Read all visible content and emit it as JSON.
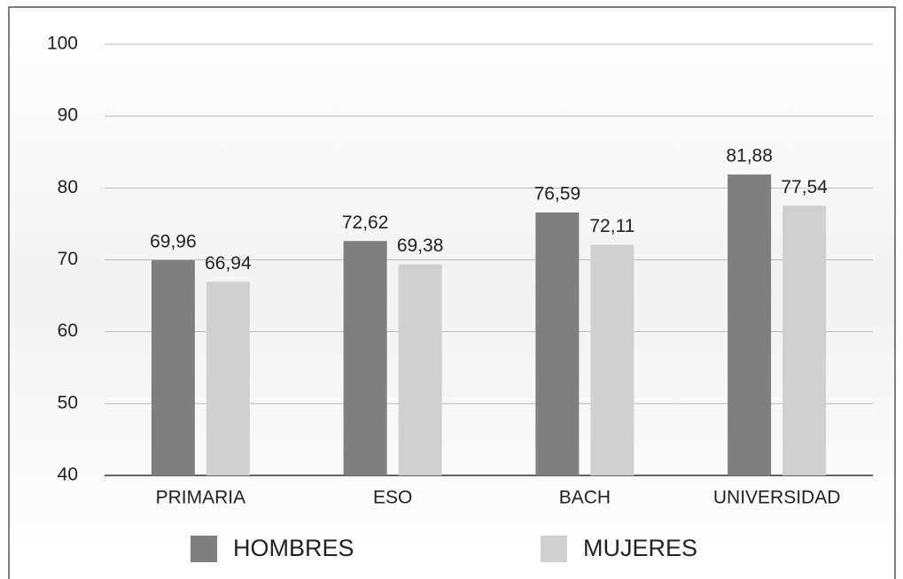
{
  "chart_data": {
    "type": "bar",
    "categories": [
      "PRIMARIA",
      "ESO",
      "BACH",
      "UNIVERSIDAD"
    ],
    "series": [
      {
        "name": "HOMBRES",
        "color": "#7f7f7f",
        "values": [
          69.96,
          72.62,
          76.59,
          81.88
        ],
        "value_labels": [
          "69,96",
          "72,62",
          "76,59",
          "81,88"
        ]
      },
      {
        "name": "MUJERES",
        "color": "#d0d0d0",
        "values": [
          66.94,
          69.38,
          72.11,
          77.54
        ],
        "value_labels": [
          "66,94",
          "69,38",
          "72,11",
          "77,54"
        ]
      }
    ],
    "ylim": [
      40,
      100
    ],
    "yticks": [
      40,
      50,
      60,
      70,
      80,
      90,
      100
    ],
    "grid": true
  }
}
